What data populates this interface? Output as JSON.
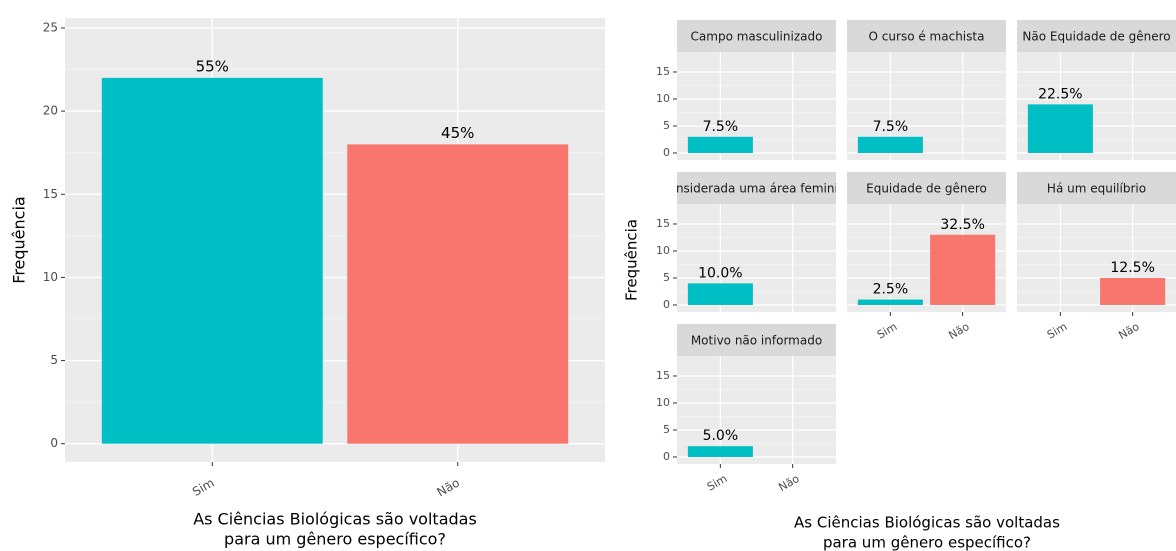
{
  "chart_data": [
    {
      "type": "bar",
      "categories": [
        "Sim",
        "Não"
      ],
      "values": [
        22,
        18
      ],
      "percent_labels": [
        "55%",
        "45%"
      ],
      "colors": [
        "#00bfc4",
        "#f8766d"
      ],
      "ylim": [
        -1.1,
        25.6
      ],
      "yticks": [
        0,
        5,
        10,
        15,
        20,
        25
      ],
      "ylabel": "Frequência",
      "xlabel": [
        "As Ciências Biológicas são voltadas",
        "para um gênero específico?"
      ],
      "grid": true
    },
    {
      "type": "facet_bar",
      "categories": [
        "Sim",
        "Não"
      ],
      "colors": [
        "#00bfc4",
        "#f8766d"
      ],
      "ylim": [
        -1.3,
        18.7
      ],
      "yticks": [
        0,
        5,
        10,
        15
      ],
      "ylabel": "Frequência",
      "xlabel": [
        "As Ciências Biológicas são voltadas",
        "para um gênero específico?"
      ],
      "grid": true,
      "facets": [
        {
          "title": "Campo masculinizado",
          "values": [
            3,
            null
          ],
          "percent_labels": [
            "7.5%",
            null
          ]
        },
        {
          "title": "O curso é machista",
          "values": [
            3,
            null
          ],
          "percent_labels": [
            "7.5%",
            null
          ]
        },
        {
          "title": "Não Equidade de gênero",
          "values": [
            9,
            null
          ],
          "percent_labels": [
            "22.5%",
            null
          ]
        },
        {
          "title": "Considerada uma área feminina",
          "values": [
            4,
            null
          ],
          "percent_labels": [
            "10.0%",
            null
          ]
        },
        {
          "title": "Equidade de gênero",
          "values": [
            1,
            13
          ],
          "percent_labels": [
            "2.5%",
            "32.5%"
          ]
        },
        {
          "title": "Há um equilíbrio",
          "values": [
            null,
            5
          ],
          "percent_labels": [
            null,
            "12.5%"
          ]
        },
        {
          "title": "Motivo não informado",
          "values": [
            2,
            null
          ],
          "percent_labels": [
            "5.0%",
            null
          ]
        }
      ]
    }
  ]
}
